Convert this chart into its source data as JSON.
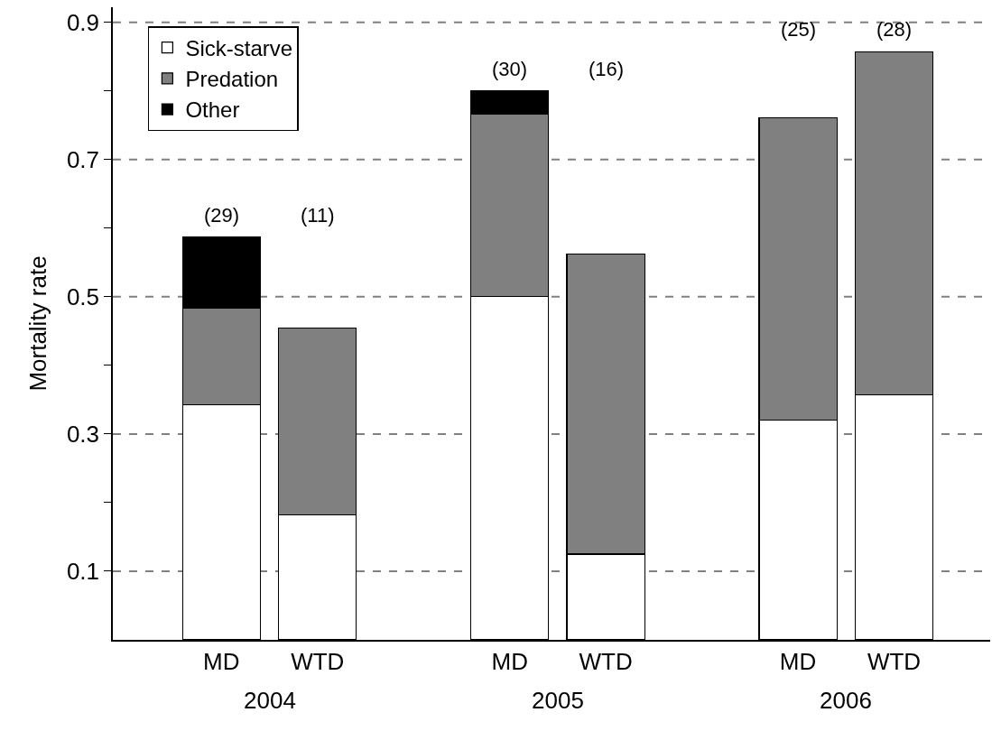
{
  "chart_data": {
    "type": "bar",
    "stacked": true,
    "ylabel": "Mortality rate",
    "categories": [
      "MD",
      "WTD",
      null,
      "MD",
      "WTD",
      null,
      "MD",
      "WTD"
    ],
    "series": [
      {
        "name": "Sick-starve",
        "color": "#ffffff",
        "values": [
          0.343,
          0.182,
          null,
          0.5,
          0.125,
          null,
          0.32,
          0.357
        ]
      },
      {
        "name": "Predation",
        "color": "#808080",
        "values": [
          0.14,
          0.272,
          null,
          0.266,
          0.437,
          null,
          0.441,
          0.5
        ]
      },
      {
        "name": "Other",
        "color": "#000000",
        "values": [
          0.104,
          null,
          null,
          0.034,
          null,
          null,
          null,
          null
        ]
      }
    ],
    "ylim": [
      0,
      0.922
    ],
    "yticks": [
      0.1,
      {
        "value": 0.2,
        "label": null
      },
      0.3,
      {
        "value": 0.4,
        "label": null
      },
      0.5,
      {
        "value": 0.6,
        "label": null
      },
      0.7,
      {
        "value": 0.8,
        "label": null
      },
      0.9
    ],
    "grid": "y",
    "legend": "top left",
    "annotations": [
      "2004",
      "2005",
      "2006",
      "(29)",
      "(11)",
      "(30)",
      "(16)",
      "(25)",
      "(28)"
    ]
  }
}
